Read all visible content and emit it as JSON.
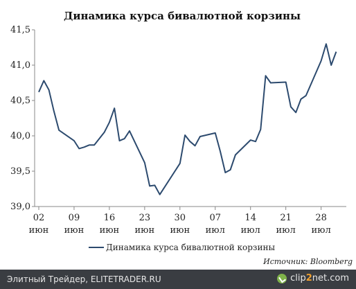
{
  "chart_data": {
    "type": "line",
    "title": "Динамика курса бивалютной корзины",
    "ylim": [
      39.0,
      41.5
    ],
    "y_ticks": [
      "41,5",
      "41,0",
      "40,5",
      "40,0",
      "39,5",
      "39,0"
    ],
    "y_tick_values": [
      41.5,
      41.0,
      40.5,
      40.0,
      39.5,
      39.0
    ],
    "x_ticks": [
      {
        "day": "02",
        "month": "июн",
        "index": 0
      },
      {
        "day": "09",
        "month": "июн",
        "index": 7
      },
      {
        "day": "16",
        "month": "июн",
        "index": 14
      },
      {
        "day": "23",
        "month": "июн",
        "index": 21
      },
      {
        "day": "30",
        "month": "июн",
        "index": 28
      },
      {
        "day": "07",
        "month": "июл",
        "index": 35
      },
      {
        "day": "14",
        "month": "июл",
        "index": 42
      },
      {
        "day": "21",
        "month": "июл",
        "index": 49
      },
      {
        "day": "28",
        "month": "июл",
        "index": 56
      }
    ],
    "x_count": 62,
    "series": [
      {
        "name": "Динамика курса бивалютной корзины",
        "color": "#2c4a6e",
        "points": [
          [
            0,
            40.62
          ],
          [
            1,
            40.78
          ],
          [
            2,
            40.65
          ],
          [
            3,
            40.35
          ],
          [
            4,
            40.08
          ],
          [
            7,
            39.93
          ],
          [
            8,
            39.82
          ],
          [
            9,
            39.84
          ],
          [
            10,
            39.87
          ],
          [
            11,
            39.87
          ],
          [
            13,
            40.05
          ],
          [
            14,
            40.19
          ],
          [
            15,
            40.39
          ],
          [
            16,
            39.93
          ],
          [
            17,
            39.96
          ],
          [
            18,
            40.07
          ],
          [
            21,
            39.62
          ],
          [
            22,
            39.29
          ],
          [
            23,
            39.3
          ],
          [
            24,
            39.17
          ],
          [
            28,
            39.61
          ],
          [
            29,
            40.01
          ],
          [
            30,
            39.92
          ],
          [
            31,
            39.86
          ],
          [
            32,
            39.99
          ],
          [
            35,
            40.04
          ],
          [
            36,
            39.78
          ],
          [
            37,
            39.48
          ],
          [
            38,
            39.52
          ],
          [
            39,
            39.73
          ],
          [
            42,
            39.94
          ],
          [
            43,
            39.92
          ],
          [
            44,
            40.09
          ],
          [
            45,
            40.85
          ],
          [
            46,
            40.75
          ],
          [
            49,
            40.76
          ],
          [
            50,
            40.41
          ],
          [
            51,
            40.33
          ],
          [
            52,
            40.52
          ],
          [
            53,
            40.57
          ],
          [
            56,
            41.06
          ],
          [
            57,
            41.3
          ],
          [
            58,
            41.0
          ],
          [
            59,
            41.19
          ]
        ]
      }
    ],
    "legend": {
      "position": "bottom-left",
      "label": "Динамика курса бивалютной корзины"
    },
    "source": "Источник: Bloomberg",
    "grid": false
  },
  "footer": {
    "text": "Элитный Трейдер, ELITETRADER.RU",
    "logo_prefix": "clip",
    "logo_mid": "2",
    "logo_suffix": "net.com"
  }
}
